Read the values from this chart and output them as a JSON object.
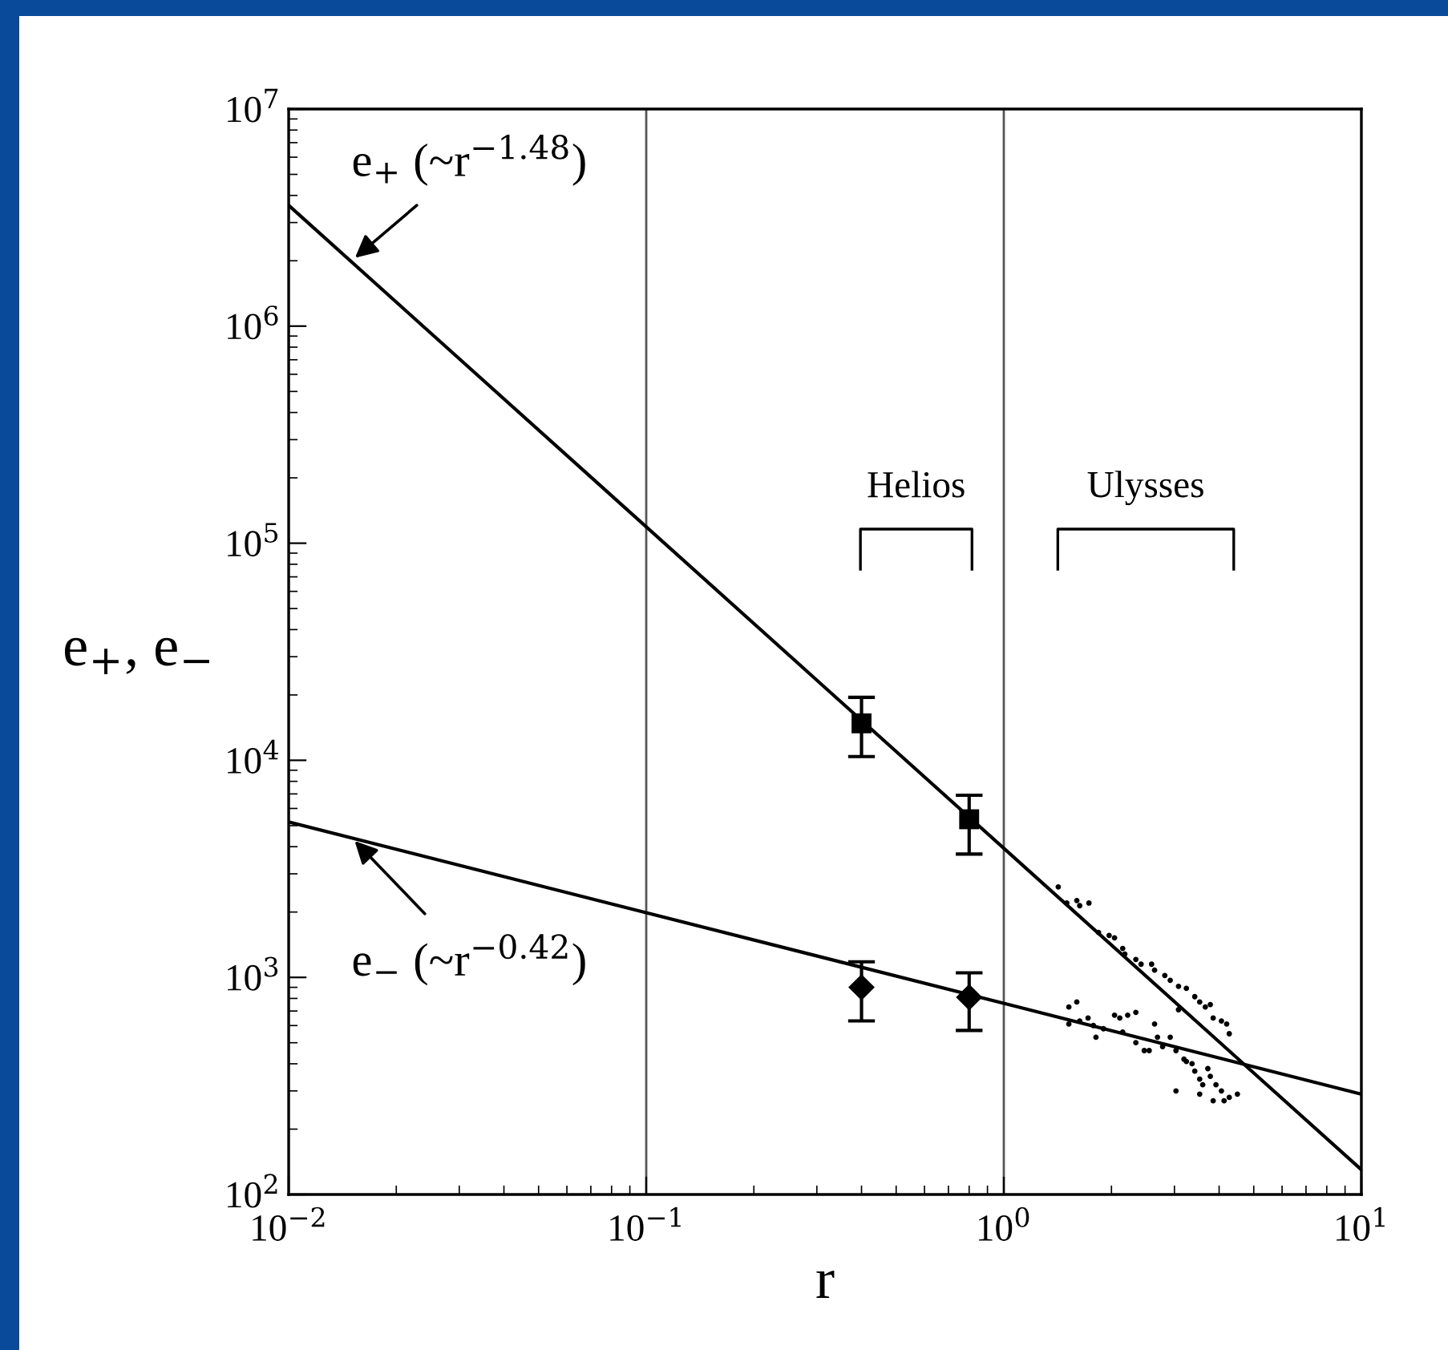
{
  "chart_data": {
    "type": "scatter",
    "xlabel": "r",
    "ylabel": "e$_{+}$, e$_{−}$",
    "log": "xy",
    "grid": "x",
    "xlim": [
      0.01,
      10
    ],
    "ylim": [
      100,
      10000000
    ],
    "xticks": [
      {
        "value": 0.01,
        "label": "10$^{−2}$"
      },
      {
        "value": 0.1,
        "label": "10$^{−1}$"
      },
      {
        "value": 1,
        "label": "10$^{0}$"
      },
      {
        "value": 10,
        "label": "10$^{1}$"
      }
    ],
    "yticks": [
      {
        "value": 100,
        "label": "10$^{2}$"
      },
      {
        "value": 1000,
        "label": "10$^{3}$"
      },
      {
        "value": 10000,
        "label": "10$^{4}$"
      },
      {
        "value": 100000,
        "label": "10$^{5}$"
      },
      {
        "value": 1000000,
        "label": "10$^{6}$"
      },
      {
        "value": 10000000,
        "label": "10$^{7}$"
      }
    ],
    "series": [
      {
        "type": "line",
        "color": "#000000",
        "x": [
          0.01,
          10
        ],
        "values": [
          3600000,
          130
        ]
      },
      {
        "type": "line",
        "color": "#000000",
        "x": [
          0.01,
          10
        ],
        "values": [
          5200,
          290
        ]
      },
      {
        "marker": "square",
        "color": "#000000",
        "x": [
          0.4,
          0.8
        ],
        "values": [
          14800,
          5350
        ],
        "errors": [
          [
            10400,
            19500
          ],
          [
            3700,
            6900
          ]
        ]
      },
      {
        "marker": "diamond",
        "color": "#000000",
        "x": [
          0.4,
          0.8
        ],
        "values": [
          900,
          810
        ],
        "errors": [
          [
            630,
            1180
          ],
          [
            570,
            1050
          ]
        ]
      },
      {
        "marker": "circle",
        "color": "#000000",
        "x": [
          1.42,
          1.5,
          1.6,
          1.63,
          1.73,
          1.84,
          1.97,
          2.04,
          2.15,
          2.18,
          2.34,
          2.42,
          2.59,
          2.64,
          2.82,
          2.92,
          3.08,
          3.24,
          3.42,
          3.53,
          3.66,
          3.78,
          3.85,
          4.06,
          4.2,
          4.27,
          1.52,
          1.6,
          1.52,
          1.63,
          1.72,
          1.78,
          1.81,
          1.9,
          2.04,
          2.11,
          2.22,
          2.34,
          2.15,
          2.34,
          2.47,
          2.55,
          2.64,
          2.69,
          2.78,
          2.92,
          3.03,
          3.08,
          3.19,
          3.24,
          3.36,
          3.42,
          3.53,
          3.72,
          3.78,
          3.6,
          3.53,
          3.92,
          4.06,
          4.27,
          4.5,
          3.85,
          4.13,
          3.03
        ],
        "values": [
          2610,
          2200,
          2260,
          2140,
          2200,
          1610,
          1560,
          1520,
          1360,
          1280,
          1210,
          1150,
          1150,
          1080,
          1020,
          970,
          910,
          890,
          815,
          770,
          730,
          750,
          650,
          630,
          610,
          550,
          730,
          770,
          610,
          630,
          650,
          600,
          530,
          580,
          670,
          650,
          670,
          690,
          560,
          500,
          460,
          460,
          610,
          530,
          480,
          530,
          460,
          710,
          420,
          410,
          400,
          370,
          340,
          380,
          350,
          320,
          290,
          320,
          300,
          280,
          290,
          270,
          270,
          300
        ]
      }
    ],
    "annotations": [
      {
        "text": "e$_{+}$ (~r$^{−1.48}$)",
        "x": 0.015,
        "y": 2000000
      },
      {
        "text": "e$_{−}$ (~r$^{−0.42}$)",
        "x": 0.015,
        "y": 4400
      },
      "Helios",
      "Ulysses"
    ]
  }
}
